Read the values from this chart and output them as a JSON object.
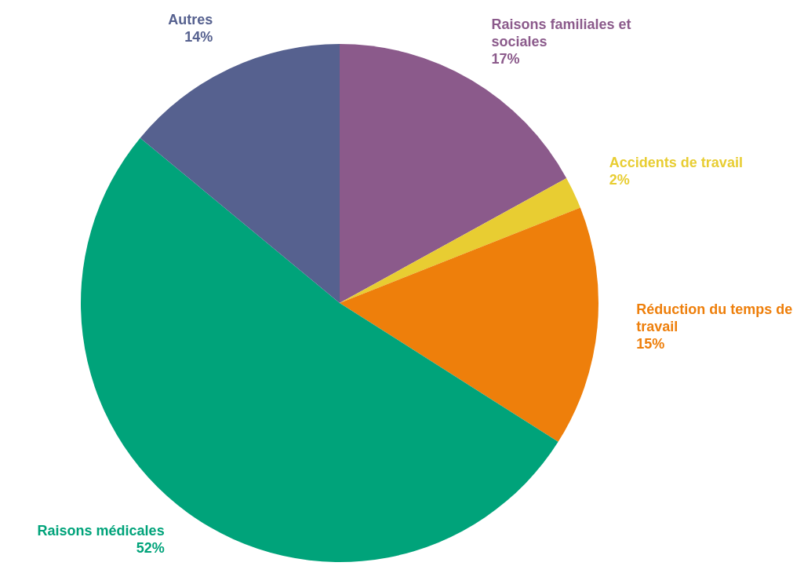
{
  "chart_data": {
    "type": "pie",
    "categories": [
      "Raisons familiales et sociales",
      "Accidents de travail",
      "Réduction du temps de travail",
      "Raisons médicales",
      "Autres"
    ],
    "values": [
      17,
      2,
      15,
      52,
      14
    ],
    "value_labels": [
      "17%",
      "2%",
      "15%",
      "52%",
      "14%"
    ],
    "colors": [
      "#8b5a8b",
      "#e8cd32",
      "#ee7f0b",
      "#00a37a",
      "#56618f"
    ]
  }
}
